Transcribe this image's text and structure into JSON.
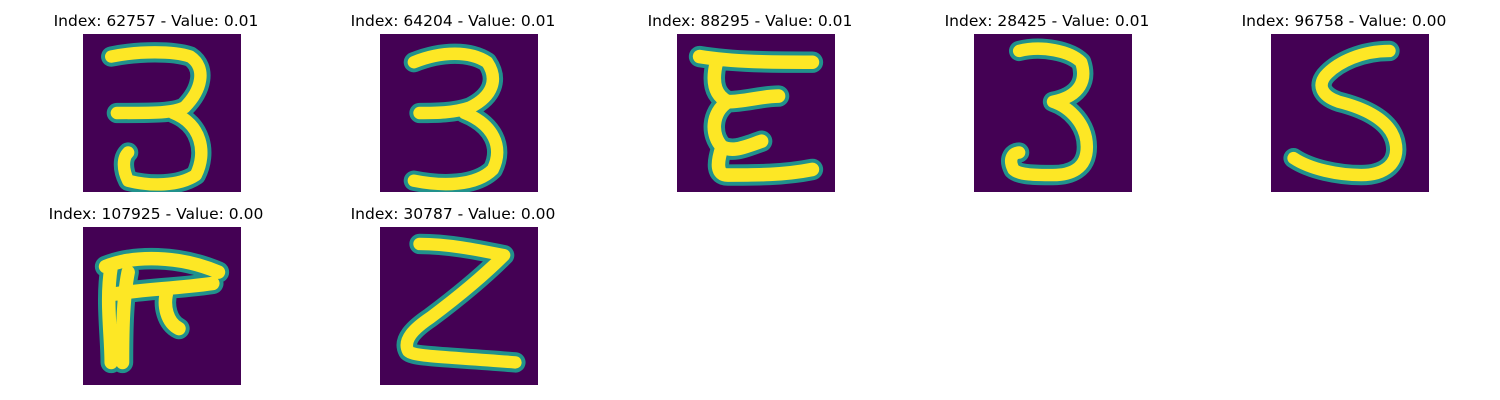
{
  "panels": [
    {
      "title": "Index: 62757 - Value: 0.01",
      "glyph": "3"
    },
    {
      "title": "Index: 64204 - Value: 0.01",
      "glyph": "3"
    },
    {
      "title": "Index: 88295 - Value: 0.01",
      "glyph": "E-curly"
    },
    {
      "title": "Index: 28425 - Value: 0.01",
      "glyph": "3"
    },
    {
      "title": "Index: 96758 - Value: 0.00",
      "glyph": "S"
    },
    {
      "title": "Index: 107925 - Value: 0.00",
      "glyph": "F-shape"
    },
    {
      "title": "Index: 30787 - Value: 0.00",
      "glyph": "Z"
    }
  ],
  "colors": {
    "background": "#440154",
    "stroke_outer": "#21918c",
    "stroke_inner": "#fde725"
  }
}
